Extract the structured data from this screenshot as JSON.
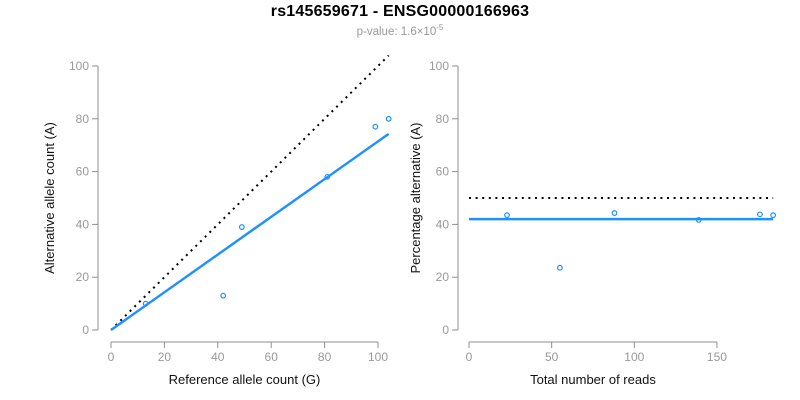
{
  "header": {
    "title": "rs145659671 - ENSG00000166963",
    "subtitle_base": "p-value: 1.6×10",
    "subtitle_exponent": "-5"
  },
  "colors": {
    "accent_blue": "#1e90ff",
    "reference_black": "#000000",
    "axis_line": "#8f8f8f",
    "tick_label": "#999999",
    "axis_title": "#111111",
    "title_text": "#000000",
    "subtitle_text": "#999999",
    "background": "#ffffff"
  },
  "chart_data": [
    {
      "type": "scatter",
      "panel": "left",
      "xlabel": "Reference allele count (G)",
      "ylabel": "Alternative allele count (A)",
      "xticks": [
        0,
        20,
        40,
        60,
        80,
        100
      ],
      "yticks": [
        0,
        20,
        40,
        60,
        80,
        100
      ],
      "xlim": [
        0,
        104
      ],
      "ylim": [
        0,
        104
      ],
      "grid": false,
      "legend": null,
      "points": [
        [
          13,
          10
        ],
        [
          42,
          13
        ],
        [
          49,
          39
        ],
        [
          81,
          58
        ],
        [
          99,
          77
        ],
        [
          104,
          80
        ]
      ],
      "lines": [
        {
          "name": "identity-line",
          "style": "dotted",
          "color": "#000000",
          "from": [
            0,
            0
          ],
          "to": [
            104,
            104
          ]
        },
        {
          "name": "fit-line",
          "style": "solid",
          "color": "#1e90ff",
          "from": [
            0,
            0
          ],
          "to": [
            104,
            74.3
          ]
        }
      ]
    },
    {
      "type": "scatter",
      "panel": "right",
      "xlabel": "Total number of reads",
      "ylabel": "Percentage alternative (A)",
      "xticks": [
        0,
        50,
        100,
        150
      ],
      "yticks": [
        0,
        20,
        40,
        60,
        80,
        100
      ],
      "xlim": [
        0,
        184
      ],
      "ylim": [
        0,
        100
      ],
      "grid": false,
      "legend": null,
      "points": [
        [
          23,
          43.5
        ],
        [
          55,
          23.6
        ],
        [
          88,
          44.3
        ],
        [
          139,
          41.7
        ],
        [
          176,
          43.8
        ],
        [
          184,
          43.5
        ]
      ],
      "lines": [
        {
          "name": "expected-50pct-line",
          "style": "dotted",
          "color": "#000000",
          "from": [
            0,
            50
          ],
          "to": [
            184,
            50
          ]
        },
        {
          "name": "fit-line",
          "style": "solid",
          "color": "#1e90ff",
          "from": [
            0,
            42
          ],
          "to": [
            184,
            42
          ]
        }
      ]
    }
  ]
}
